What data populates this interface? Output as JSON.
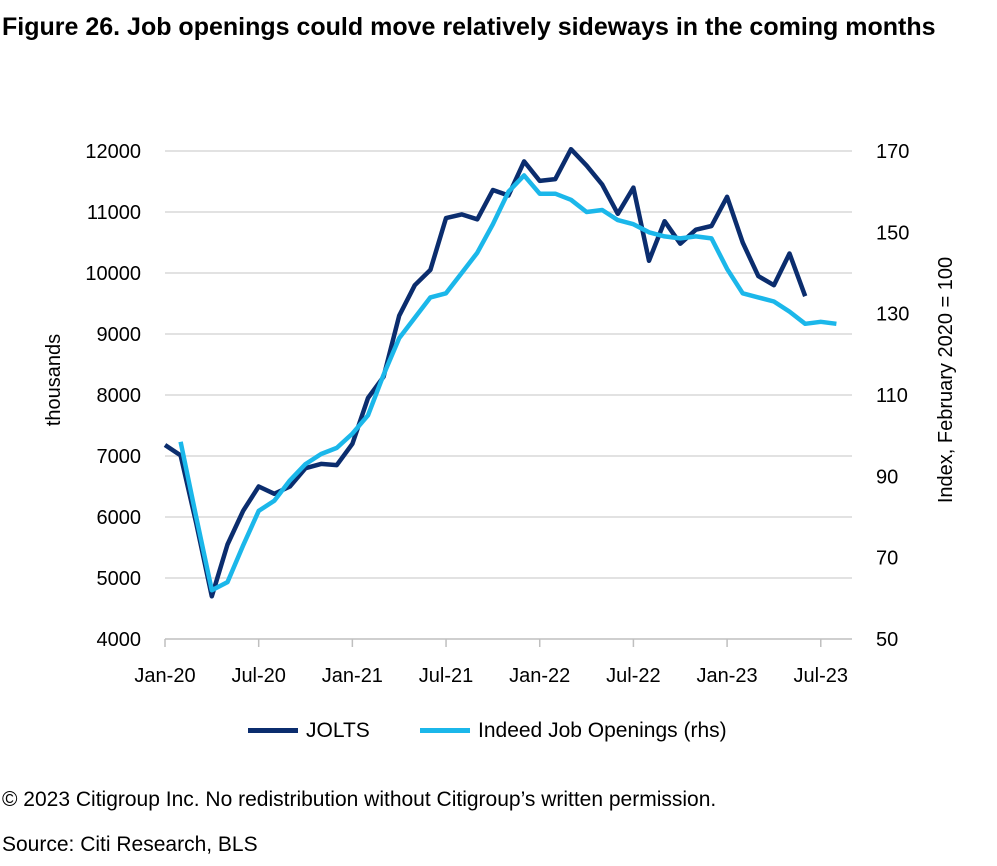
{
  "title": "Figure 26. Job openings could move relatively sideways in the coming months",
  "footer": {
    "copyright": "© 2023 Citigroup Inc. No redistribution without Citigroup’s written permission.",
    "source": "Source: Citi Research, BLS"
  },
  "colors": {
    "jolts": "#0B2D6E",
    "indeed": "#1BB7EA",
    "grid": "#D9D9D9",
    "axis": "#BFBFBF"
  },
  "chart_data": {
    "type": "line",
    "x_ticks": [
      "Jan-20",
      "Jul-20",
      "Jan-21",
      "Jul-21",
      "Jan-22",
      "Jul-22",
      "Jan-23",
      "Jul-23"
    ],
    "ylabel": "thousands",
    "ylabel_right": "Index, February 2020 = 100",
    "ylim": [
      4000,
      12000
    ],
    "y_ticks": [
      "4000",
      "5000",
      "6000",
      "7000",
      "8000",
      "9000",
      "10000",
      "11000",
      "12000"
    ],
    "ylim_right": [
      50,
      170
    ],
    "y_ticks_right": [
      "50",
      "70",
      "90",
      "110",
      "130",
      "150",
      "170"
    ],
    "grid": true,
    "legend_position": "bottom",
    "series": [
      {
        "name": "JOLTS",
        "axis": "left",
        "x": [
          "2020-01",
          "2020-02",
          "2020-03",
          "2020-04",
          "2020-05",
          "2020-06",
          "2020-07",
          "2020-08",
          "2020-09",
          "2020-10",
          "2020-11",
          "2020-12",
          "2021-01",
          "2021-02",
          "2021-03",
          "2021-04",
          "2021-05",
          "2021-06",
          "2021-07",
          "2021-08",
          "2021-09",
          "2021-10",
          "2021-11",
          "2021-12",
          "2022-01",
          "2022-02",
          "2022-03",
          "2022-04",
          "2022-05",
          "2022-06",
          "2022-07",
          "2022-08",
          "2022-09",
          "2022-10",
          "2022-11",
          "2022-12",
          "2023-01",
          "2023-02",
          "2023-03",
          "2023-04",
          "2023-05",
          "2023-06"
        ],
        "y": [
          7180,
          7010,
          5900,
          4700,
          5550,
          6100,
          6500,
          6380,
          6500,
          6800,
          6870,
          6850,
          7200,
          7950,
          8300,
          9300,
          9800,
          10050,
          10900,
          10960,
          10880,
          11360,
          11270,
          11830,
          11510,
          11540,
          12030,
          11760,
          11450,
          10970,
          11400,
          10200,
          10850,
          10480,
          10710,
          10770,
          11250,
          10500,
          9950,
          9800,
          10320,
          9620
        ]
      },
      {
        "name": "Indeed Job Openings (rhs)",
        "axis": "right",
        "x": [
          "2020-02",
          "2020-03",
          "2020-04",
          "2020-05",
          "2020-06",
          "2020-07",
          "2020-08",
          "2020-09",
          "2020-10",
          "2020-11",
          "2020-12",
          "2021-01",
          "2021-02",
          "2021-03",
          "2021-04",
          "2021-05",
          "2021-06",
          "2021-07",
          "2021-08",
          "2021-09",
          "2021-10",
          "2021-11",
          "2021-12",
          "2022-01",
          "2022-02",
          "2022-03",
          "2022-04",
          "2022-05",
          "2022-06",
          "2022-07",
          "2022-08",
          "2022-09",
          "2022-10",
          "2022-11",
          "2022-12",
          "2023-01",
          "2023-02",
          "2023-03",
          "2023-04",
          "2023-05",
          "2023-06",
          "2023-07",
          "2023-08"
        ],
        "y": [
          98.5,
          80,
          62,
          64,
          73,
          81.5,
          84,
          89,
          93,
          95.5,
          97,
          100.5,
          105,
          115,
          124,
          129,
          134,
          135,
          140,
          145,
          152,
          160,
          164,
          159.5,
          159.5,
          158,
          155,
          155.5,
          153,
          152,
          150,
          149,
          148.5,
          149,
          148.5,
          141,
          135,
          134,
          133,
          130.5,
          127.5,
          128,
          127.5
        ]
      }
    ]
  }
}
